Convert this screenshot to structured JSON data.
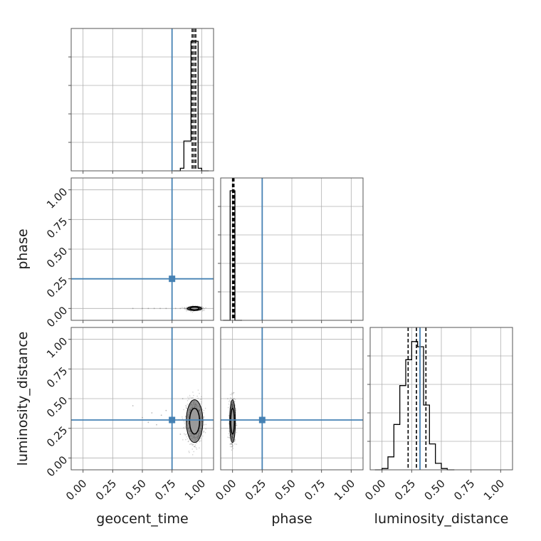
{
  "figure": {
    "type": "corner plot",
    "parameters": [
      "geocent_time",
      "phase",
      "luminosity_distance"
    ]
  },
  "colors": {
    "truth": "#4682b4",
    "hist": "#000000",
    "grid": "#b0b0b0",
    "frame": "#555555"
  },
  "chart_data": {
    "type": "corner",
    "variables": [
      "geocent_time",
      "phase",
      "luminosity_distance"
    ],
    "axis_labels": {
      "x": [
        "geocent_time",
        "phase",
        "luminosity_distance"
      ],
      "y": [
        "phase",
        "luminosity_distance"
      ]
    },
    "tick_labels": [
      "0.00",
      "0.25",
      "0.50",
      "0.75",
      "1.00"
    ],
    "tick_values": [
      0,
      0.25,
      0.5,
      0.75,
      1.0
    ],
    "range": [
      -0.1,
      1.1
    ],
    "grid": true,
    "truths": {
      "geocent_time": 0.75,
      "phase": 0.25,
      "luminosity_distance": 0.32
    },
    "histograms": {
      "geocent_time": {
        "edges": [
          0.82,
          0.85,
          0.88,
          0.91,
          0.94,
          0.97,
          1.0
        ],
        "counts": [
          0.02,
          0.23,
          0.23,
          1.0,
          1.0,
          0.02
        ],
        "quantiles": [
          0.92,
          0.935,
          0.95
        ]
      },
      "phase": {
        "edges": [
          -0.02,
          0.0,
          0.02
        ],
        "counts": [
          1.0,
          1.0
        ],
        "quantiles": [
          0.0,
          0.005,
          0.012
        ]
      },
      "luminosity_distance": {
        "edges": [
          0.0,
          0.05,
          0.1,
          0.15,
          0.2,
          0.25,
          0.3,
          0.35,
          0.4,
          0.45,
          0.5,
          0.55
        ],
        "counts": [
          0.01,
          0.1,
          0.35,
          0.65,
          0.85,
          0.99,
          0.95,
          0.5,
          0.2,
          0.05,
          0.01
        ],
        "quantiles": [
          0.22,
          0.29,
          0.37
        ]
      }
    },
    "scatter_2d": [
      {
        "x": "geocent_time",
        "y": "phase",
        "points": [
          [
            0.42,
            0.0
          ],
          [
            0.5,
            0.0
          ],
          [
            0.55,
            0.0
          ],
          [
            0.6,
            0.0
          ],
          [
            0.65,
            0.0
          ],
          [
            0.7,
            0.0
          ],
          [
            0.75,
            0.0
          ],
          [
            0.78,
            0.0
          ],
          [
            0.82,
            0.0
          ],
          [
            0.86,
            0.0
          ],
          [
            0.9,
            0.0
          ]
        ],
        "core": {
          "x": 0.94,
          "y": 0.0,
          "sx": 0.03,
          "sy": 0.008
        }
      },
      {
        "x": "geocent_time",
        "y": "luminosity_distance",
        "points": [
          [
            0.42,
            0.44
          ],
          [
            0.5,
            0.34
          ],
          [
            0.55,
            0.3
          ],
          [
            0.58,
            0.38
          ],
          [
            0.62,
            0.28
          ],
          [
            0.66,
            0.36
          ],
          [
            0.7,
            0.4
          ],
          [
            0.82,
            0.2
          ],
          [
            0.84,
            0.5
          ]
        ],
        "core": {
          "x": 0.94,
          "y": 0.31,
          "sx": 0.035,
          "sy": 0.09
        }
      },
      {
        "x": "phase",
        "y": "luminosity_distance",
        "points": [
          [
            0.0,
            0.15
          ],
          [
            0.01,
            0.55
          ],
          [
            -0.01,
            0.45
          ]
        ],
        "core": {
          "x": 0.0,
          "y": 0.31,
          "sx": 0.012,
          "sy": 0.09
        }
      }
    ]
  }
}
